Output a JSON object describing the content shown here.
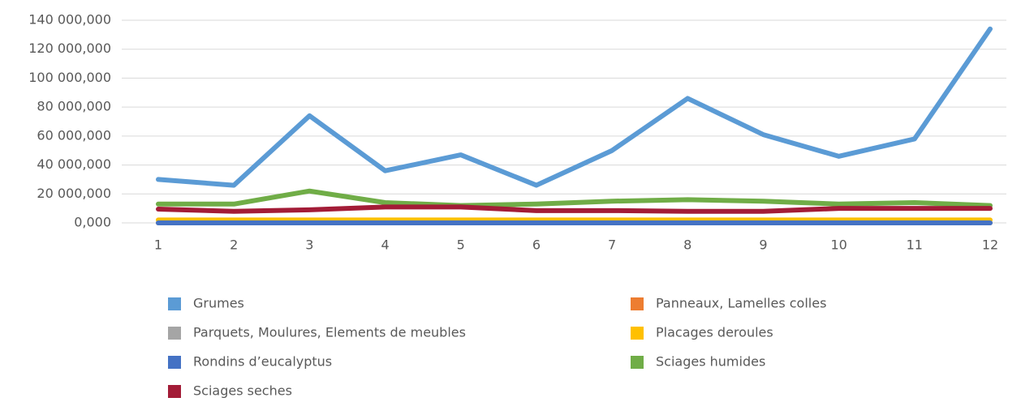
{
  "chart_data": {
    "type": "line",
    "categories": [
      "1",
      "2",
      "3",
      "4",
      "5",
      "6",
      "7",
      "8",
      "9",
      "10",
      "11",
      "12"
    ],
    "series": [
      {
        "name": "Grumes",
        "color": "#5b9bd5",
        "values": [
          30000000,
          26000000,
          74000000,
          36000000,
          47000000,
          26000000,
          50000000,
          86000000,
          61000000,
          46000000,
          58000000,
          134000000
        ]
      },
      {
        "name": "Panneaux, Lamelles colles",
        "color": "#ed7d31",
        "values": [
          0,
          0,
          0,
          0,
          0,
          0,
          0,
          0,
          0,
          0,
          0,
          0
        ]
      },
      {
        "name": "Parquets, Moulures, Elements de meubles",
        "color": "#a5a5a5",
        "values": [
          0,
          0,
          0,
          0,
          0,
          0,
          0,
          0,
          0,
          0,
          0,
          0
        ]
      },
      {
        "name": "Placages deroules",
        "color": "#ffc000",
        "values": [
          2000000,
          2000000,
          2000000,
          2000000,
          2000000,
          2000000,
          2000000,
          2000000,
          2000000,
          2000000,
          2000000,
          2000000
        ]
      },
      {
        "name": "Rondins d’eucalyptus",
        "color": "#4472c4",
        "values": [
          0,
          0,
          0,
          0,
          0,
          0,
          0,
          0,
          0,
          0,
          0,
          0
        ]
      },
      {
        "name": "Sciages humides",
        "color": "#70ad47",
        "values": [
          13000000,
          13000000,
          22000000,
          14000000,
          12000000,
          13000000,
          15000000,
          16000000,
          15000000,
          13000000,
          14000000,
          12000000
        ]
      },
      {
        "name": "Sciages seches",
        "color": "#a31c37",
        "values": [
          9500000,
          8000000,
          9000000,
          11000000,
          11000000,
          8500000,
          8500000,
          8000000,
          8000000,
          10000000,
          10000000,
          10000000
        ]
      }
    ],
    "ylim": [
      0,
      140000000
    ],
    "yticks": [
      {
        "value": 0,
        "label": "0,000"
      },
      {
        "value": 20000000,
        "label": "20 000,000"
      },
      {
        "value": 40000000,
        "label": "40 000,000"
      },
      {
        "value": 60000000,
        "label": "60 000,000"
      },
      {
        "value": 80000000,
        "label": "80 000,000"
      },
      {
        "value": 100000000,
        "label": "100 000,000"
      },
      {
        "value": 120000000,
        "label": "120 000,000"
      },
      {
        "value": 140000000,
        "label": "140 000,000"
      }
    ],
    "grid": true
  }
}
